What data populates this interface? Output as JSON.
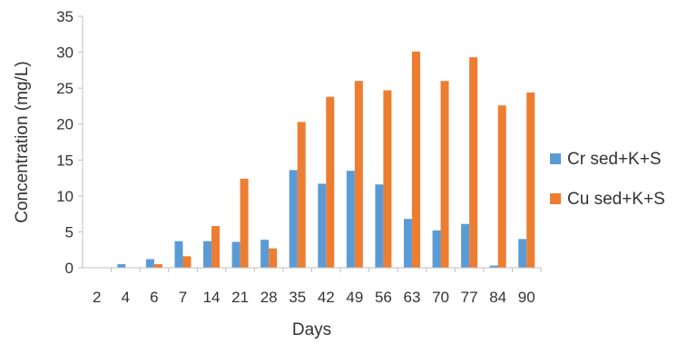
{
  "chart_data": {
    "type": "bar",
    "xlabel": "Days",
    "ylabel": "Concentration (mg/L)",
    "ylim": [
      0,
      35
    ],
    "yticks": [
      0,
      5,
      10,
      15,
      20,
      25,
      30,
      35
    ],
    "grid": false,
    "legend_position": "right",
    "categories": [
      "2",
      "4",
      "6",
      "7",
      "14",
      "21",
      "28",
      "35",
      "42",
      "49",
      "56",
      "63",
      "70",
      "77",
      "84",
      "90"
    ],
    "series": [
      {
        "name": "Cr sed+K+S",
        "color": "#5B9BD5",
        "values": [
          0,
          0.5,
          1.2,
          3.7,
          3.7,
          3.6,
          3.9,
          13.6,
          11.7,
          13.5,
          11.6,
          6.8,
          5.2,
          6.1,
          0.3,
          4.0
        ]
      },
      {
        "name": "Cu sed+K+S",
        "color": "#ED7D31",
        "values": [
          0,
          0,
          0.5,
          1.6,
          5.8,
          12.4,
          2.7,
          20.3,
          23.8,
          26.0,
          24.7,
          30.1,
          26.0,
          29.3,
          22.6,
          24.4
        ]
      }
    ]
  }
}
